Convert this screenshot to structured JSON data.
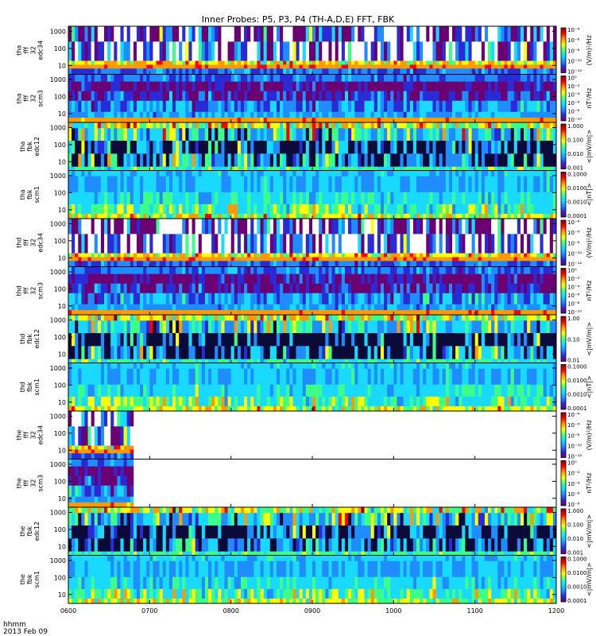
{
  "title": "Inner Probes: P5, P3, P4 (TH-A,D,E) FFT, FBK",
  "footer": {
    "time_label": "hhmm",
    "date_label": "2013 Feb 09"
  },
  "chart_data": {
    "type": "heatmap",
    "x_ticks": [
      "0600",
      "0700",
      "0800",
      "0900",
      "1000",
      "1100",
      "1200"
    ],
    "x_range": [
      "0600",
      "1200"
    ],
    "y_scale": "log",
    "y_ticks": [
      "10",
      "100",
      "1000"
    ],
    "colormap": [
      "#6b0073",
      "#2b2bd6",
      "#1f8cff",
      "#19d9ff",
      "#3cff8a",
      "#ffff00",
      "#ff9900",
      "#ff0000",
      "#8b0000"
    ],
    "panels": [
      {
        "label": [
          "tha",
          "fff",
          "32",
          "edc34"
        ],
        "cb_unit": "(V/m)²/Hz",
        "cb_ticks": [
          "10⁻⁴",
          "10⁻⁶",
          "10⁻⁸",
          "10⁻¹⁰",
          "10⁻¹²"
        ],
        "data_end": "1200",
        "style": "eff"
      },
      {
        "label": [
          "tha",
          "fff",
          "32",
          "scm3"
        ],
        "cb_unit": "nT²/Hz",
        "cb_ticks": [
          "10⁰",
          "10⁻²",
          "10⁻⁴",
          "10⁻⁶",
          "10⁻⁸",
          "10⁻¹⁰"
        ],
        "data_end": "1200",
        "style": "scm"
      },
      {
        "label": [
          "tha",
          "fbk",
          "edc12"
        ],
        "cb_unit": "<|mV/m|>",
        "cb_ticks": [
          "1.000",
          "0.100",
          "0.010",
          "0.001"
        ],
        "data_end": "1200",
        "style": "fbkE"
      },
      {
        "label": [
          "tha",
          "fbk",
          "scm1"
        ],
        "cb_unit": "<|nT|>",
        "cb_ticks": [
          "0.1000",
          "0.0100",
          "0.0010",
          "0.0001"
        ],
        "data_end": "1200",
        "style": "fbkB"
      },
      {
        "label": [
          "thd",
          "fff",
          "32",
          "edc34"
        ],
        "cb_unit": "(V/m)²/Hz",
        "cb_ticks": [
          "10⁻⁴",
          "10⁻⁶",
          "10⁻⁸",
          "10⁻¹⁰",
          "10⁻¹²"
        ],
        "data_end": "1200",
        "style": "eff"
      },
      {
        "label": [
          "thd",
          "fff",
          "32",
          "scm3"
        ],
        "cb_unit": "nT²/Hz",
        "cb_ticks": [
          "10⁰",
          "10⁻²",
          "10⁻⁴",
          "10⁻⁶",
          "10⁻⁸",
          "10⁻¹⁰"
        ],
        "data_end": "1200",
        "style": "scm"
      },
      {
        "label": [
          "thd",
          "fbk",
          "edc12"
        ],
        "cb_unit": "<|mV/m|>",
        "cb_ticks": [
          "1.00",
          "0.10",
          "0.01"
        ],
        "data_end": "1200",
        "style": "fbkE"
      },
      {
        "label": [
          "thd",
          "fbk",
          "scm1"
        ],
        "cb_unit": "<|nT|>",
        "cb_ticks": [
          "0.1000",
          "0.0100",
          "0.0010",
          "0.0001"
        ],
        "data_end": "1200",
        "style": "fbkB"
      },
      {
        "label": [
          "the",
          "fff",
          "32",
          "edc34"
        ],
        "cb_unit": "(V/m)²/Hz",
        "cb_ticks": [
          "10⁻⁴",
          "10⁻⁶",
          "10⁻⁸",
          "10⁻¹⁰",
          "10⁻¹²"
        ],
        "data_end": "0648",
        "style": "eff"
      },
      {
        "label": [
          "the",
          "fff",
          "32",
          "scm3"
        ],
        "cb_unit": "nT²/Hz",
        "cb_ticks": [
          "10⁰",
          "10⁻²",
          "10⁻⁴",
          "10⁻⁶",
          "10⁻⁸"
        ],
        "data_end": "0648",
        "style": "scm"
      },
      {
        "label": [
          "the",
          "fbk",
          "edc12"
        ],
        "cb_unit": "<|mV/m|>",
        "cb_ticks": [
          "1.000",
          "0.100",
          "0.010",
          "0.001"
        ],
        "data_end": "1200",
        "style": "fbkE"
      },
      {
        "label": [
          "the",
          "fbk",
          "scm1"
        ],
        "cb_unit": "<|mV/m|>",
        "cb_ticks": [
          "0.1000",
          "0.0100",
          "0.0010",
          "0.0001"
        ],
        "data_end": "1200",
        "style": "fbkB"
      }
    ]
  }
}
